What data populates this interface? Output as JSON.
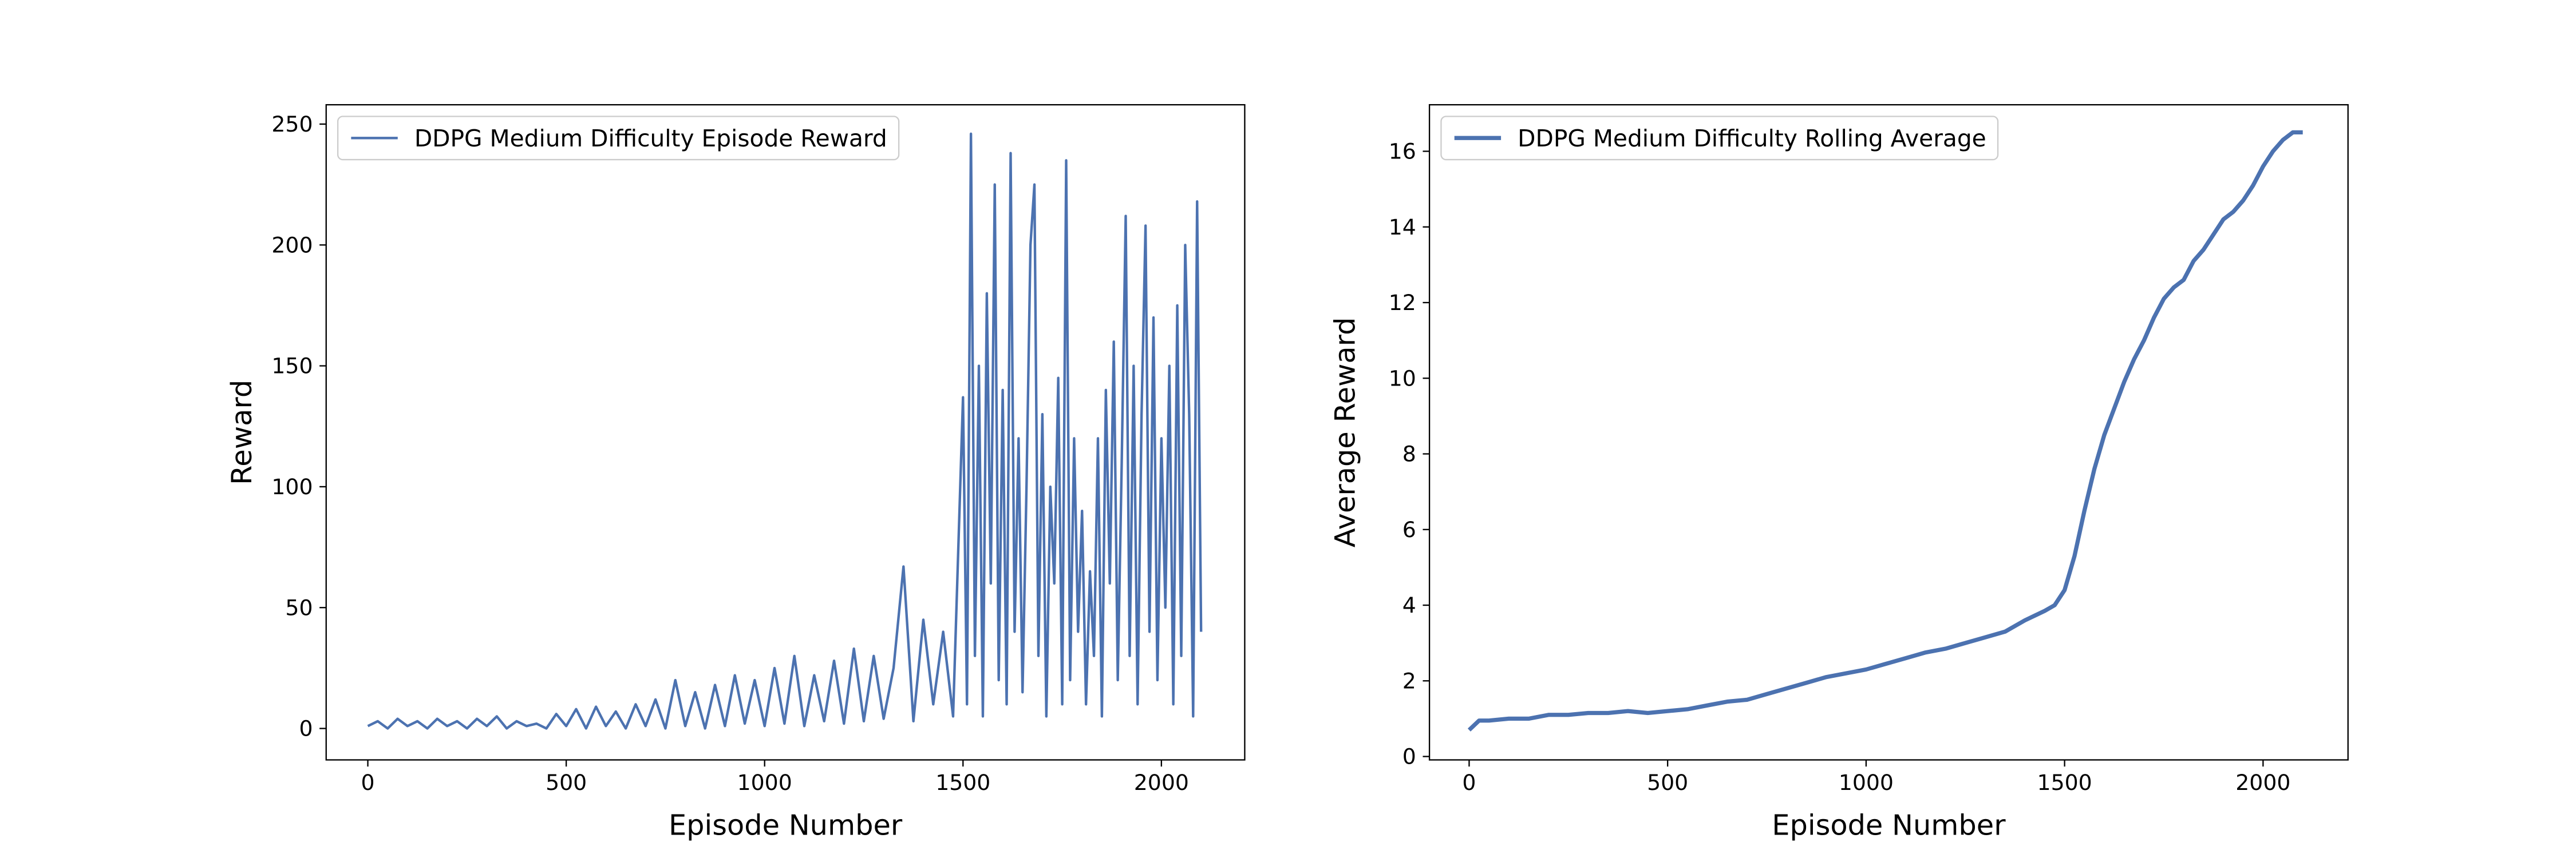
{
  "chart_data": [
    {
      "type": "line",
      "xlabel": "Episode Number",
      "ylabel": "Reward",
      "legend": "upper left",
      "xlim": [
        -105,
        2210
      ],
      "ylim": [
        -13,
        258
      ],
      "xticks": [
        0,
        500,
        1000,
        1500,
        2000
      ],
      "yticks": [
        0,
        50,
        100,
        150,
        200,
        250
      ],
      "x": [
        0,
        25,
        50,
        75,
        100,
        125,
        150,
        175,
        200,
        225,
        250,
        275,
        300,
        325,
        350,
        375,
        400,
        425,
        450,
        475,
        500,
        525,
        550,
        575,
        600,
        625,
        650,
        675,
        700,
        725,
        750,
        775,
        800,
        825,
        850,
        875,
        900,
        925,
        950,
        975,
        1000,
        1025,
        1050,
        1075,
        1100,
        1125,
        1150,
        1175,
        1200,
        1225,
        1250,
        1275,
        1300,
        1325,
        1350,
        1375,
        1400,
        1425,
        1450,
        1475,
        1500,
        1510,
        1520,
        1530,
        1540,
        1550,
        1560,
        1570,
        1580,
        1590,
        1600,
        1610,
        1620,
        1630,
        1640,
        1650,
        1660,
        1670,
        1680,
        1690,
        1700,
        1710,
        1720,
        1730,
        1740,
        1750,
        1760,
        1770,
        1780,
        1790,
        1800,
        1810,
        1820,
        1830,
        1840,
        1850,
        1860,
        1870,
        1880,
        1890,
        1900,
        1910,
        1920,
        1930,
        1940,
        1950,
        1960,
        1970,
        1980,
        1990,
        2000,
        2010,
        2020,
        2030,
        2040,
        2050,
        2060,
        2070,
        2080,
        2090,
        2100
      ],
      "series": [
        {
          "name": "DDPG Medium Difficulty Episode Reward",
          "color": "#4c72b0",
          "values": [
            1,
            3,
            0,
            4,
            1,
            3,
            0,
            4,
            1,
            3,
            0,
            4,
            1,
            5,
            0,
            3,
            1,
            2,
            0,
            6,
            1,
            8,
            0,
            9,
            1,
            7,
            0,
            10,
            1,
            12,
            0,
            20,
            1,
            15,
            0,
            18,
            1,
            22,
            2,
            20,
            1,
            25,
            2,
            30,
            1,
            22,
            3,
            28,
            2,
            33,
            3,
            30,
            4,
            25,
            67,
            3,
            45,
            10,
            40,
            5,
            137,
            10,
            246,
            30,
            150,
            5,
            180,
            60,
            225,
            20,
            140,
            10,
            238,
            40,
            120,
            15,
            100,
            200,
            225,
            30,
            130,
            5,
            100,
            60,
            145,
            10,
            235,
            20,
            120,
            40,
            90,
            10,
            65,
            30,
            120,
            5,
            140,
            60,
            160,
            20,
            110,
            212,
            30,
            150,
            10,
            130,
            208,
            40,
            170,
            20,
            120,
            50,
            150,
            10,
            175,
            30,
            200,
            130,
            5,
            218,
            40
          ]
        }
      ]
    },
    {
      "type": "line",
      "xlabel": "Episode Number",
      "ylabel": "Average Reward",
      "legend": "upper left",
      "xlim": [
        -100,
        2214
      ],
      "ylim": [
        -0.09,
        17.23
      ],
      "xticks": [
        0,
        500,
        1000,
        1500,
        2000
      ],
      "yticks": [
        0,
        2,
        4,
        6,
        8,
        10,
        12,
        14,
        16
      ],
      "x": [
        0,
        25,
        50,
        100,
        150,
        200,
        250,
        300,
        350,
        400,
        450,
        500,
        550,
        600,
        650,
        700,
        750,
        800,
        850,
        900,
        950,
        1000,
        1050,
        1100,
        1150,
        1200,
        1250,
        1300,
        1350,
        1400,
        1450,
        1475,
        1500,
        1525,
        1550,
        1575,
        1600,
        1625,
        1650,
        1675,
        1700,
        1725,
        1750,
        1775,
        1800,
        1825,
        1850,
        1875,
        1900,
        1925,
        1950,
        1975,
        2000,
        2025,
        2050,
        2075,
        2100
      ],
      "series": [
        {
          "name": "DDPG Medium Difficulty Rolling Average",
          "color": "#4c72b0",
          "values": [
            0.7,
            0.95,
            0.95,
            1.0,
            1.0,
            1.1,
            1.1,
            1.15,
            1.15,
            1.2,
            1.15,
            1.2,
            1.25,
            1.35,
            1.45,
            1.5,
            1.65,
            1.8,
            1.95,
            2.1,
            2.2,
            2.3,
            2.45,
            2.6,
            2.75,
            2.85,
            3.0,
            3.15,
            3.3,
            3.6,
            3.85,
            4.0,
            4.4,
            5.3,
            6.5,
            7.6,
            8.5,
            9.2,
            9.9,
            10.5,
            11.0,
            11.6,
            12.1,
            12.4,
            12.6,
            13.1,
            13.4,
            13.8,
            14.2,
            14.4,
            14.7,
            15.1,
            15.6,
            16.0,
            16.3,
            16.5,
            16.5
          ]
        }
      ]
    }
  ]
}
